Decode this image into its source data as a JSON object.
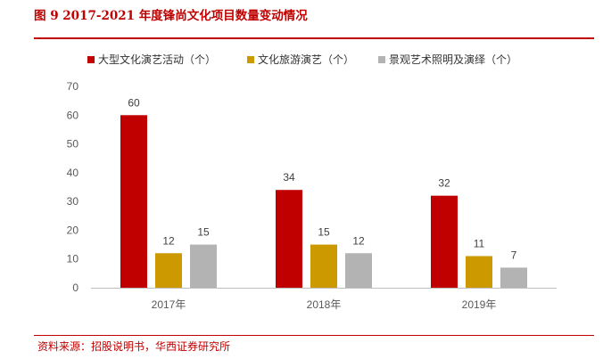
{
  "figure": {
    "title": "图 9 2017-2021 年度锋尚文化项目数量变动情况",
    "source": "资料来源：招股说明书，华西证券研究所"
  },
  "chart_data": {
    "type": "bar",
    "title": "图 9 2017-2021 年度锋尚文化项目数量变动情况",
    "xlabel": "",
    "ylabel": "",
    "categories": [
      "2017年",
      "2018年",
      "2019年"
    ],
    "ylim": [
      0,
      70
    ],
    "yticks": [
      0,
      10,
      20,
      30,
      40,
      50,
      60,
      70
    ],
    "grid": false,
    "legend_position": "top",
    "series": [
      {
        "name": "大型文化演艺活动（个）",
        "color": "#c00000",
        "values": [
          60,
          34,
          32
        ]
      },
      {
        "name": "文化旅游演艺（个）",
        "color": "#cc9900",
        "values": [
          12,
          15,
          11
        ]
      },
      {
        "name": "景观艺术照明及演绎（个）",
        "color": "#b3b3b3",
        "values": [
          15,
          12,
          7
        ]
      }
    ]
  }
}
